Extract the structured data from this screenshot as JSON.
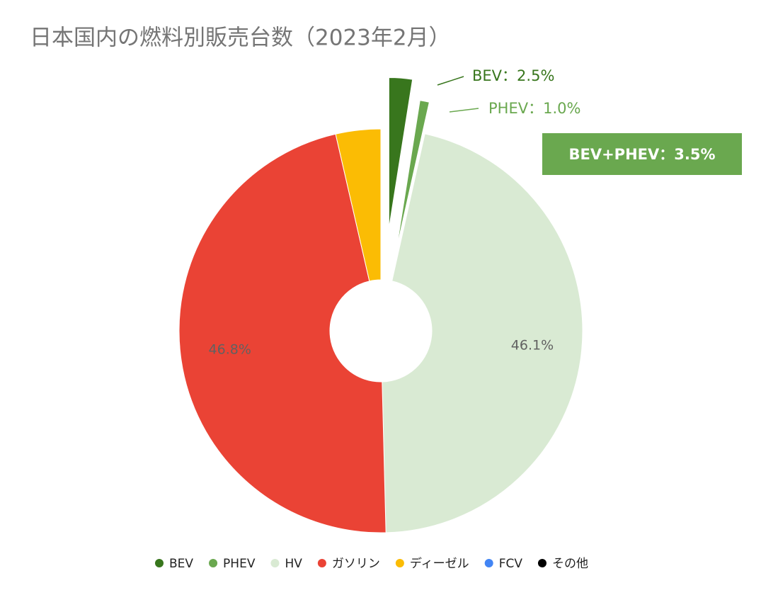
{
  "chart_data": {
    "type": "donut",
    "title": "日本国内の燃料別販売台数（2023年2月）",
    "categories": [
      "BEV",
      "PHEV",
      "HV",
      "ガソリン",
      "ディーゼル",
      "FCV",
      "その他"
    ],
    "values": [
      2.5,
      1.0,
      46.1,
      46.8,
      3.6,
      0,
      0
    ],
    "value_labels": [
      "BEV：2.5%",
      "PHEV：1.0%",
      "46.1%",
      "46.8%",
      null,
      null,
      null
    ],
    "colors": [
      "#38761d",
      "#6aa84f",
      "#d9ead3",
      "#ea4335",
      "#fbbc04",
      "#4285f4",
      "#000000"
    ],
    "exploded": [
      true,
      true,
      false,
      false,
      false,
      false,
      false
    ],
    "annotation": "BEV+PHEV：3.5%",
    "legend": "bottom"
  }
}
